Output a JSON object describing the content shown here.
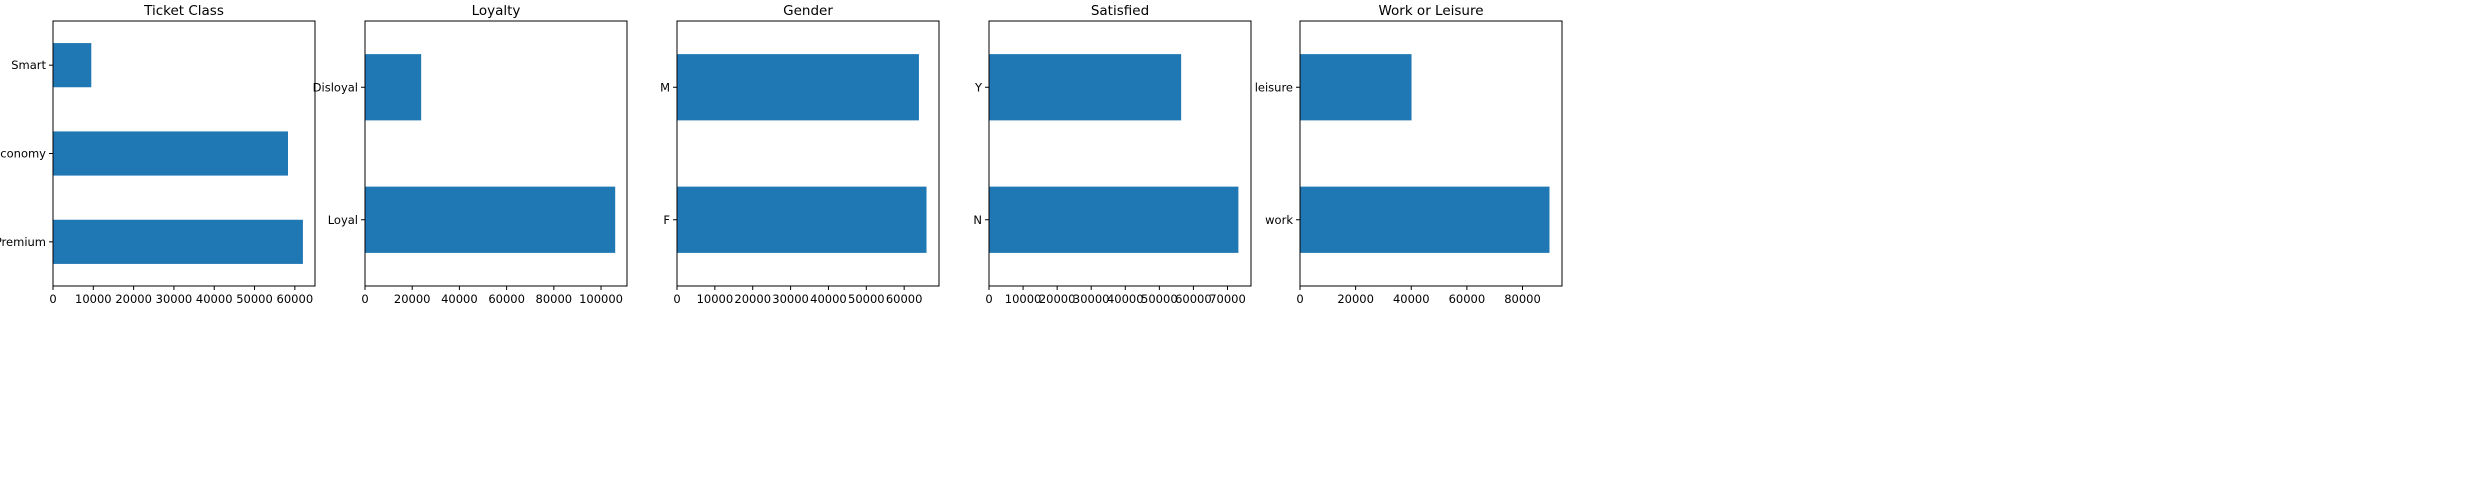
{
  "colors": {
    "bar": "#1f77b4",
    "axis": "#000000",
    "background": "#ffffff"
  },
  "chart_data": [
    {
      "type": "bar",
      "orientation": "horizontal",
      "title": "Ticket Class",
      "categories": [
        "Premium",
        "Economy",
        "Smart"
      ],
      "values": [
        62000,
        58300,
        9500
      ],
      "xlim": [
        0,
        65000
      ],
      "xticks": [
        0,
        10000,
        20000,
        30000,
        40000,
        50000,
        60000
      ],
      "xlabel": "",
      "ylabel": "",
      "grid": false,
      "legend": "none"
    },
    {
      "type": "bar",
      "orientation": "horizontal",
      "title": "Loyalty",
      "categories": [
        "Loyal",
        "Disloyal"
      ],
      "values": [
        106000,
        23800
      ],
      "xlim": [
        0,
        111000
      ],
      "xticks": [
        0,
        20000,
        40000,
        60000,
        80000,
        100000
      ],
      "xlabel": "",
      "ylabel": "",
      "grid": false,
      "legend": "none"
    },
    {
      "type": "bar",
      "orientation": "horizontal",
      "title": "Gender",
      "categories": [
        "F",
        "M"
      ],
      "values": [
        65900,
        63900
      ],
      "xlim": [
        0,
        69200
      ],
      "xticks": [
        0,
        10000,
        20000,
        30000,
        40000,
        50000,
        60000
      ],
      "xlabel": "",
      "ylabel": "",
      "grid": false,
      "legend": "none"
    },
    {
      "type": "bar",
      "orientation": "horizontal",
      "title": "Satisfied",
      "categories": [
        "N",
        "Y"
      ],
      "values": [
        73200,
        56400
      ],
      "xlim": [
        0,
        76900
      ],
      "xticks": [
        0,
        10000,
        20000,
        30000,
        40000,
        50000,
        60000,
        70000
      ],
      "xlabel": "",
      "ylabel": "",
      "grid": false,
      "legend": "none"
    },
    {
      "type": "bar",
      "orientation": "horizontal",
      "title": "Work or Leisure",
      "categories": [
        "work",
        "leisure"
      ],
      "values": [
        89700,
        40100
      ],
      "xlim": [
        0,
        94200
      ],
      "xticks": [
        0,
        20000,
        40000,
        60000,
        80000
      ],
      "xlabel": "",
      "ylabel": "",
      "grid": false,
      "legend": "none"
    }
  ]
}
